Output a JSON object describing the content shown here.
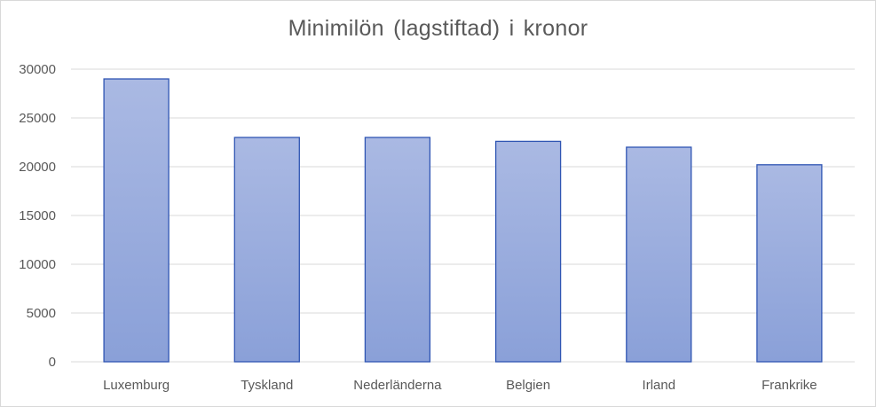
{
  "chart_data": {
    "type": "bar",
    "title": "Minimilön  (lagstiftad)  i kronor",
    "xlabel": "",
    "ylabel": "",
    "categories": [
      "Luxemburg",
      "Tyskland",
      "Nederländerna",
      "Belgien",
      "Irland",
      "Frankrike"
    ],
    "values": [
      29000,
      23000,
      23000,
      22600,
      22000,
      20200
    ],
    "ylim": [
      0,
      30000
    ],
    "yticks": [
      0,
      5000,
      10000,
      15000,
      20000,
      25000,
      30000
    ],
    "grid": true,
    "legend": "none",
    "colors": {
      "bar_fill_top": "#aab9e3",
      "bar_fill_bottom": "#8aa0d8",
      "bar_stroke": "#2f55b3",
      "gridline": "#d9d9d9",
      "text": "#595959"
    }
  }
}
